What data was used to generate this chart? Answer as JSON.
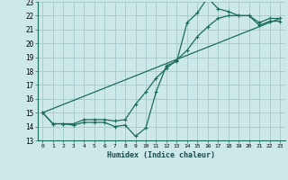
{
  "bg_color": "#cce8e8",
  "grid_color": "#aacccc",
  "line_color": "#1a6b5a",
  "xlabel": "Humidex (Indice chaleur)",
  "xlim": [
    -0.5,
    23.5
  ],
  "ylim": [
    13,
    23
  ],
  "yticks": [
    13,
    14,
    15,
    16,
    17,
    18,
    19,
    20,
    21,
    22,
    23
  ],
  "xticks": [
    0,
    1,
    2,
    3,
    4,
    5,
    6,
    7,
    8,
    9,
    10,
    11,
    12,
    13,
    14,
    15,
    16,
    17,
    18,
    19,
    20,
    21,
    22,
    23
  ],
  "line1_x": [
    0,
    1,
    2,
    3,
    4,
    5,
    6,
    7,
    8,
    9,
    10,
    11,
    12,
    13,
    14,
    15,
    16,
    17,
    18,
    19,
    20,
    21,
    22,
    23
  ],
  "line1_y": [
    15.0,
    14.2,
    14.2,
    14.1,
    14.3,
    14.3,
    14.3,
    14.0,
    14.1,
    13.3,
    13.9,
    16.5,
    18.4,
    18.7,
    21.5,
    22.2,
    23.3,
    22.5,
    22.3,
    22.0,
    22.0,
    21.3,
    21.6,
    21.6
  ],
  "line2_x": [
    0,
    1,
    2,
    3,
    4,
    5,
    6,
    7,
    8,
    9,
    10,
    11,
    12,
    13,
    14,
    15,
    16,
    17,
    18,
    19,
    20,
    21,
    22,
    23
  ],
  "line2_y": [
    15.0,
    14.2,
    14.2,
    14.2,
    14.5,
    14.5,
    14.5,
    14.4,
    14.5,
    15.6,
    16.5,
    17.5,
    18.2,
    18.8,
    19.5,
    20.5,
    21.2,
    21.8,
    22.0,
    22.0,
    22.0,
    21.5,
    21.8,
    21.8
  ],
  "line3_x": [
    0,
    23
  ],
  "line3_y": [
    15.0,
    21.8
  ]
}
